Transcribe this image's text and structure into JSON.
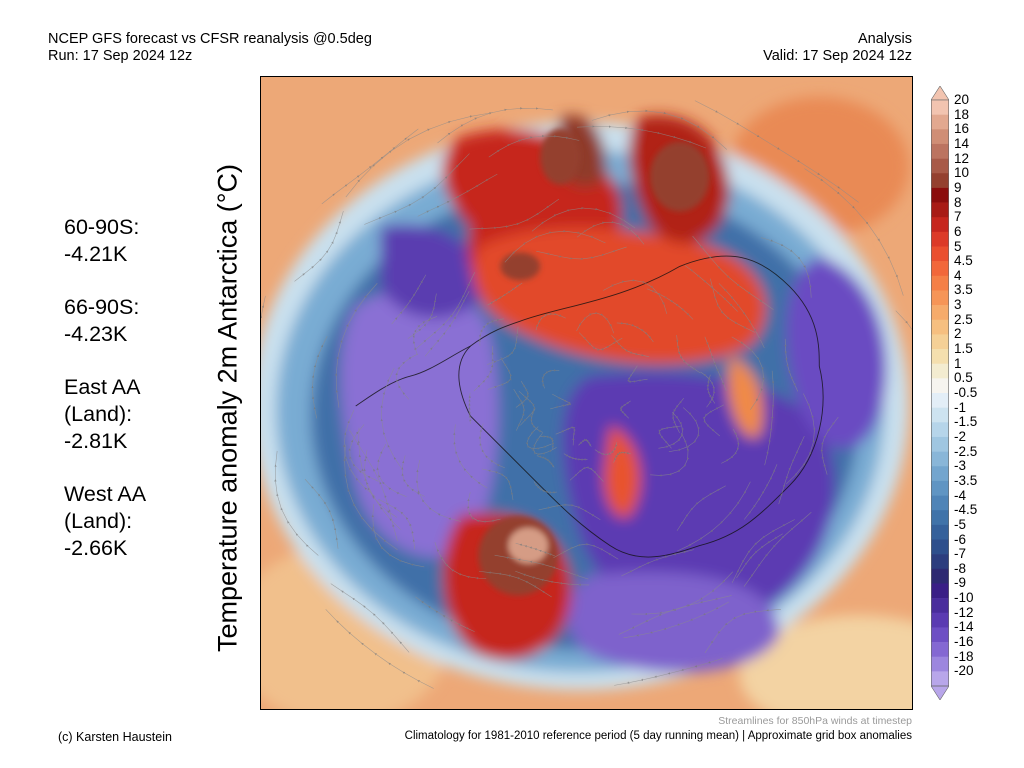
{
  "header": {
    "title_line1": "NCEP GFS forecast vs CFSR reanalysis @0.5deg",
    "title_line2": "Run: 17 Sep 2024 12z",
    "right_line1": "Analysis",
    "right_line2": "Valid: 17 Sep 2024 12z"
  },
  "stats": [
    {
      "label": "60-90S:",
      "value": "-4.21K"
    },
    {
      "label": "66-90S:",
      "value": "-4.23K"
    },
    {
      "label": "East AA\n(Land):",
      "value": "-2.81K"
    },
    {
      "label": "West AA\n(Land):",
      "value": "-2.66K"
    }
  ],
  "map": {
    "ylabel": "Temperature anomaly 2m Antarctica (°C)",
    "projection": "south-polar stereographic",
    "overlay": "Streamlines for 850hPa winds at timestep"
  },
  "colorbar": {
    "labels": [
      "20",
      "18",
      "16",
      "14",
      "12",
      "10",
      "9",
      "8",
      "7",
      "6",
      "5",
      "4.5",
      "4",
      "3.5",
      "3",
      "2.5",
      "2",
      "1.5",
      "1",
      "0.5",
      "-0.5",
      "-1",
      "-1.5",
      "-2",
      "-2.5",
      "-3",
      "-3.5",
      "-4",
      "-4.5",
      "-5",
      "-6",
      "-7",
      "-8",
      "-9",
      "-10",
      "-12",
      "-14",
      "-16",
      "-18",
      "-20"
    ],
    "colors": [
      "#f2c4b0",
      "#e2a88f",
      "#d08e75",
      "#bc7460",
      "#a85a48",
      "#94402f",
      "#8b0d0d",
      "#a81b16",
      "#c6261e",
      "#dc3a28",
      "#ea4f2f",
      "#f2673a",
      "#f57f46",
      "#f69557",
      "#f6ab6b",
      "#f6bf80",
      "#f5d096",
      "#f4dfae",
      "#f3ecd0",
      "#f6f4ef",
      "#e3eef7",
      "#cde3f0",
      "#b6d5ea",
      "#9fc6e1",
      "#89b6d8",
      "#73a5ce",
      "#6095c3",
      "#4f84b7",
      "#4073a9",
      "#35619b",
      "#2e4f8c",
      "#2c3d7e",
      "#2e2a72",
      "#3a1f86",
      "#4a2d9c",
      "#5b3bb2",
      "#6e4fc4",
      "#8468d2",
      "#9c86de",
      "#b8a6ea"
    ]
  },
  "footer": {
    "streams_note": "Streamlines for 850hPa winds at timestep",
    "credit": "(c) Karsten Haustein",
    "climatology_note": "Climatology for 1981-2010 reference period (5 day running mean) | Approximate grid box anomalies"
  }
}
